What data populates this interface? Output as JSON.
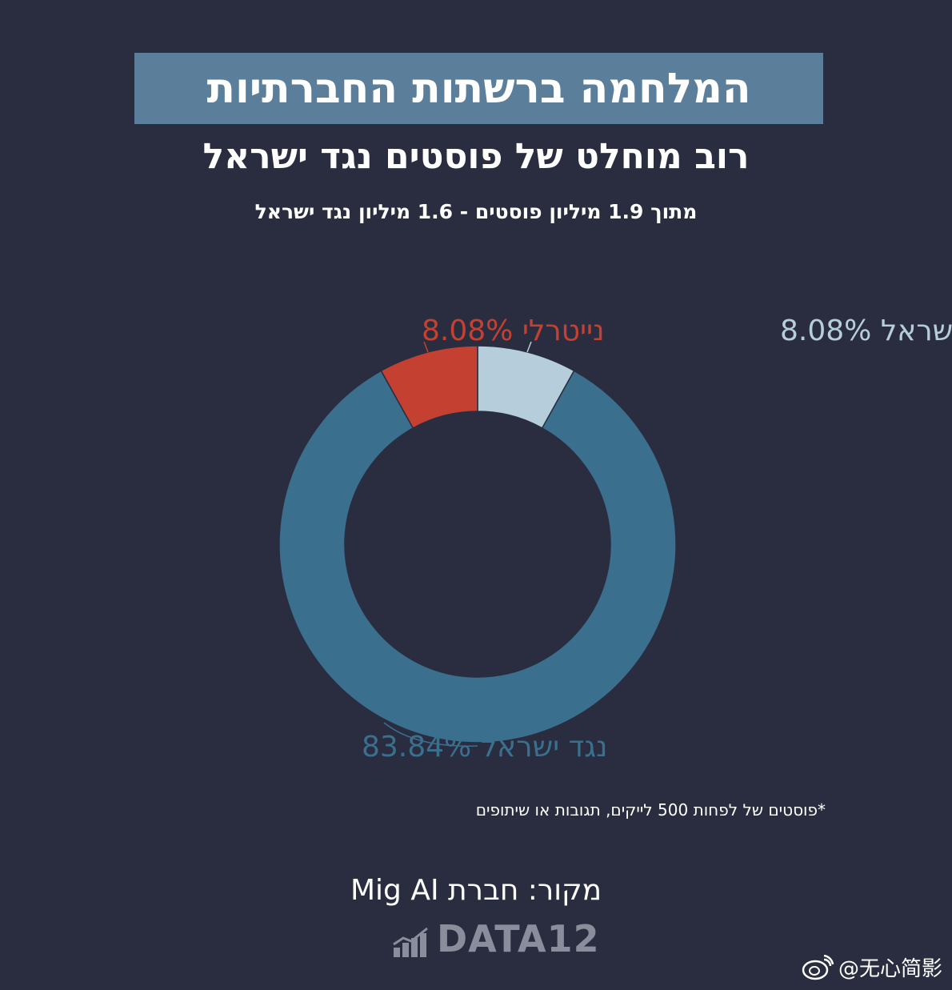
{
  "header": {
    "title": "המלחמה ברשתות החברתיות",
    "subtitle": "רוב מוחלט של פוסטים נגד ישראל",
    "subtitle2": "מתוך 1.9 מיליון פוסטים - 1.6  מיליון נגד ישראל"
  },
  "chart_data": {
    "type": "pie",
    "donut": true,
    "slices": [
      {
        "label": "בעד ישראל",
        "value": 8.08,
        "display": "8.08%",
        "color": "#b6cddb",
        "text_color": "#b6cddb"
      },
      {
        "label": "נגד ישראל",
        "value": 83.84,
        "display": "83.84%",
        "color": "#3a6f8e",
        "text_color": "#3a6f8e"
      },
      {
        "label": "נייטרלי",
        "value": 8.08,
        "display": "8.08%",
        "color": "#c44131",
        "text_color": "#c44131"
      }
    ]
  },
  "footnote": "*פוסטים של לפחות 500 לייקים, תגובות או שיתופים",
  "source": "מקור: חברת Mig AI",
  "brand": "DATA12",
  "watermark": "@无心简影"
}
